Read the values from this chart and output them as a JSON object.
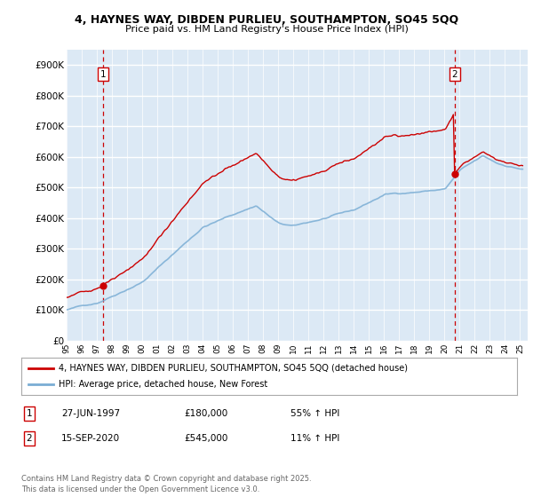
{
  "title1": "4, HAYNES WAY, DIBDEN PURLIEU, SOUTHAMPTON, SO45 5QQ",
  "title2": "Price paid vs. HM Land Registry's House Price Index (HPI)",
  "bg_color": "#dce9f5",
  "grid_color": "white",
  "red_color": "#cc0000",
  "blue_color": "#7aadd4",
  "ylim": [
    0,
    950000
  ],
  "yticks": [
    0,
    100000,
    200000,
    300000,
    400000,
    500000,
    600000,
    700000,
    800000,
    900000
  ],
  "ytick_labels": [
    "£0",
    "£100K",
    "£200K",
    "£300K",
    "£400K",
    "£500K",
    "£600K",
    "£700K",
    "£800K",
    "£900K"
  ],
  "sale1_year": 1997,
  "sale1_month": 6,
  "sale1_price": 180000,
  "sale1_label": "1",
  "sale2_year": 2020,
  "sale2_month": 9,
  "sale2_price": 545000,
  "sale2_label": "2",
  "legend_red": "4, HAYNES WAY, DIBDEN PURLIEU, SOUTHAMPTON, SO45 5QQ (detached house)",
  "legend_blue": "HPI: Average price, detached house, New Forest",
  "note1_label": "1",
  "note1_date": "27-JUN-1997",
  "note1_price": "£180,000",
  "note1_hpi": "55% ↑ HPI",
  "note2_label": "2",
  "note2_date": "15-SEP-2020",
  "note2_price": "£545,000",
  "note2_hpi": "11% ↑ HPI",
  "footer": "Contains HM Land Registry data © Crown copyright and database right 2025.\nThis data is licensed under the Open Government Licence v3.0.",
  "xlim_start": 1995.0,
  "xlim_end": 2025.5
}
